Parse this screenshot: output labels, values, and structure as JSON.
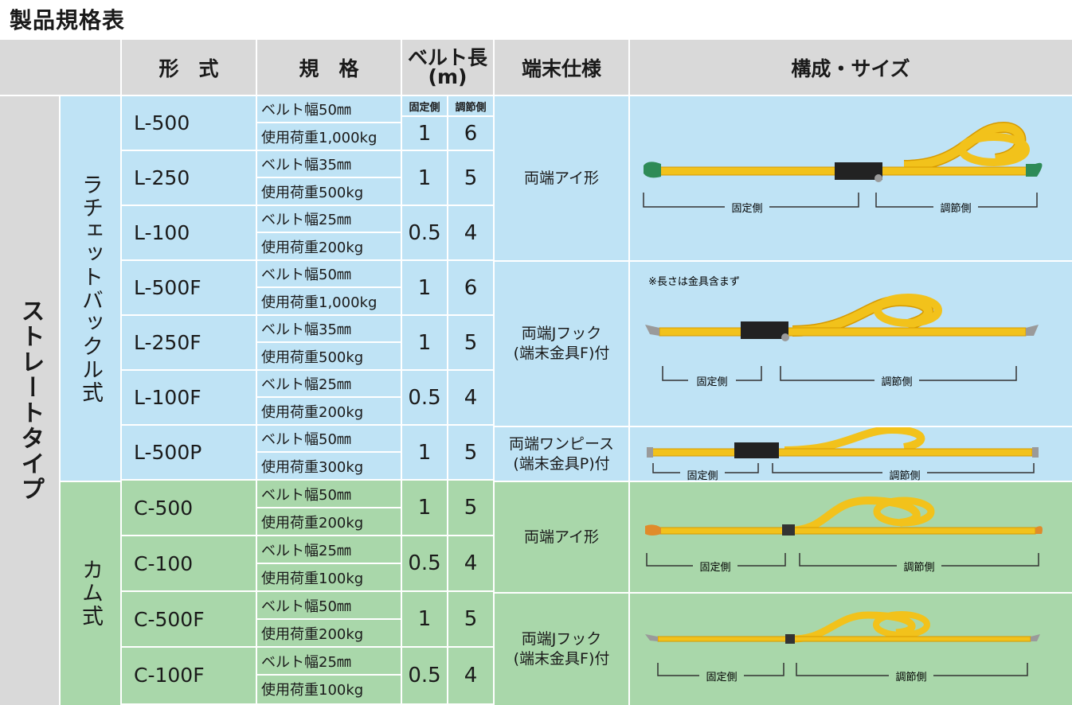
{
  "title": "製品規格表",
  "header": {
    "model": "形　式",
    "spec": "規　格",
    "belt_length": "ベルト長\n(m)",
    "end_spec": "端末仕様",
    "config": "構成・サイズ",
    "fixed_side": "固定側",
    "adjust_side": "調節側"
  },
  "groups": {
    "straight": "ストレートタイプ",
    "ratchet": "ラチェットバックル式",
    "cam": "カム式"
  },
  "rows": [
    {
      "model": "L-500",
      "width": "ベルト幅50㎜",
      "load": "使用荷重1,000kg",
      "fixed": "1",
      "adjust": "6"
    },
    {
      "model": "L-250",
      "width": "ベルト幅35㎜",
      "load": "使用荷重500kg",
      "fixed": "1",
      "adjust": "5"
    },
    {
      "model": "L-100",
      "width": "ベルト幅25㎜",
      "load": "使用荷重200kg",
      "fixed": "0.5",
      "adjust": "4"
    },
    {
      "model": "L-500F",
      "width": "ベルト幅50㎜",
      "load": "使用荷重1,000kg",
      "fixed": "1",
      "adjust": "6"
    },
    {
      "model": "L-250F",
      "width": "ベルト幅35㎜",
      "load": "使用荷重500kg",
      "fixed": "1",
      "adjust": "5"
    },
    {
      "model": "L-100F",
      "width": "ベルト幅25㎜",
      "load": "使用荷重200kg",
      "fixed": "0.5",
      "adjust": "4"
    },
    {
      "model": "L-500P",
      "width": "ベルト幅50㎜",
      "load": "使用荷重300kg",
      "fixed": "1",
      "adjust": "5"
    },
    {
      "model": "C-500",
      "width": "ベルト幅50㎜",
      "load": "使用荷重200kg",
      "fixed": "1",
      "adjust": "5"
    },
    {
      "model": "C-100",
      "width": "ベルト幅25㎜",
      "load": "使用荷重100kg",
      "fixed": "0.5",
      "adjust": "4"
    },
    {
      "model": "C-500F",
      "width": "ベルト幅50㎜",
      "load": "使用荷重200kg",
      "fixed": "1",
      "adjust": "5"
    },
    {
      "model": "C-100F",
      "width": "ベルト幅25㎜",
      "load": "使用荷重100kg",
      "fixed": "0.5",
      "adjust": "4"
    }
  ],
  "end_types": {
    "eye": "両端アイ形",
    "jhook_1": "両端Jフック",
    "jhook_2": "(端末金具F)付",
    "onepiece_1": "両端ワンピース",
    "onepiece_2": "(端末金具P)付"
  },
  "diagram": {
    "fixed_label": "固定側",
    "adjust_label": "調節側",
    "note": "※長さは金具含まず"
  },
  "colors": {
    "belt": "#f2c21b",
    "belt_edge": "#d79a00",
    "ratchet": "#222222",
    "eye_green": "#2e8b57",
    "hook": "#9a9a9a"
  }
}
